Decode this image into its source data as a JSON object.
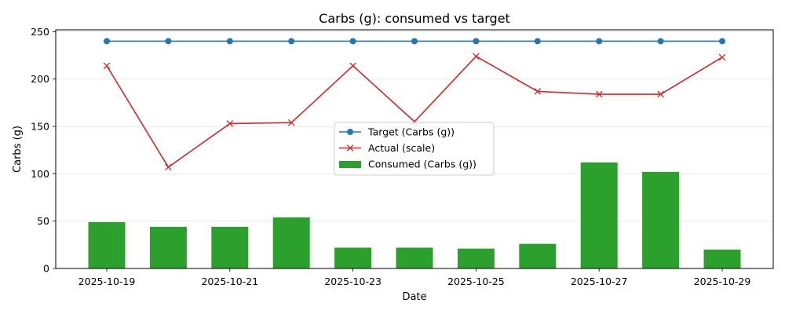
{
  "chart_data": {
    "type": "bar",
    "title": "Carbs (g): consumed vs target",
    "xlabel": "Date",
    "ylabel": "Carbs (g)",
    "ylim": [
      0,
      252
    ],
    "yticks": [
      0,
      50,
      100,
      150,
      200,
      250
    ],
    "x": [
      "2025-10-19",
      "2025-10-20",
      "2025-10-21",
      "2025-10-22",
      "2025-10-23",
      "2025-10-24",
      "2025-10-25",
      "2025-10-26",
      "2025-10-27",
      "2025-10-28",
      "2025-10-29"
    ],
    "xtick_labels": [
      "2025-10-19",
      "2025-10-21",
      "2025-10-23",
      "2025-10-25",
      "2025-10-27",
      "2025-10-29"
    ],
    "grid": "horizontal",
    "legend_position": "center",
    "series": [
      {
        "name": "Target (Carbs (g))",
        "kind": "line",
        "marker": "circle",
        "color": "#1f77b4",
        "values": [
          240,
          240,
          240,
          240,
          240,
          240,
          240,
          240,
          240,
          240,
          240
        ]
      },
      {
        "name": "Actual (scale)",
        "kind": "line",
        "marker": "x",
        "color": "#d62728",
        "values": [
          214,
          107,
          153,
          154,
          214,
          155,
          224,
          187,
          184,
          184,
          223
        ]
      },
      {
        "name": "Consumed (Carbs (g))",
        "kind": "bar",
        "color": "#2ca02c",
        "values": [
          49,
          44,
          44,
          54,
          22,
          22,
          21,
          26,
          112,
          102,
          20
        ]
      }
    ]
  }
}
